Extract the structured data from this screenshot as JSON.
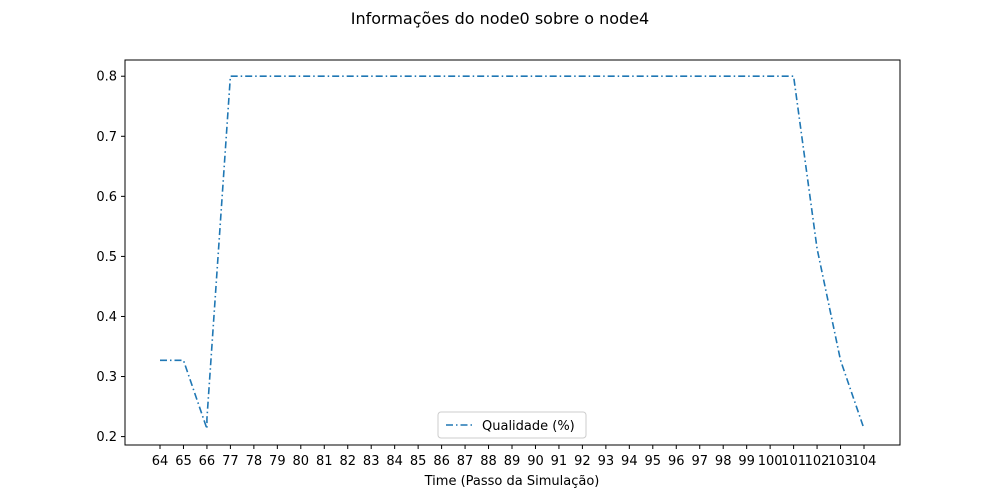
{
  "chart_data": {
    "type": "line",
    "title": "Informações do node0 sobre o node4",
    "xlabel": "Time (Passo da Simulação)",
    "ylabel": "",
    "categories": [
      "64",
      "65",
      "66",
      "77",
      "78",
      "79",
      "80",
      "81",
      "82",
      "83",
      "84",
      "85",
      "86",
      "87",
      "88",
      "89",
      "90",
      "91",
      "92",
      "93",
      "94",
      "95",
      "96",
      "97",
      "98",
      "99",
      "100",
      "101",
      "102",
      "103",
      "104"
    ],
    "series": [
      {
        "name": "Qualidade (%)",
        "color": "#1f77b4",
        "line_style": "dash-dot",
        "points": [
          {
            "x": "64",
            "y": 0.327
          },
          {
            "x": "65",
            "y": 0.327
          },
          {
            "x": "66",
            "y": 0.213
          },
          {
            "x": "66",
            "y": 0.23
          },
          {
            "x": "77",
            "y": 0.8
          },
          {
            "x": "78",
            "y": 0.8
          },
          {
            "x": "79",
            "y": 0.8
          },
          {
            "x": "80",
            "y": 0.8
          },
          {
            "x": "81",
            "y": 0.8
          },
          {
            "x": "82",
            "y": 0.8
          },
          {
            "x": "83",
            "y": 0.8
          },
          {
            "x": "84",
            "y": 0.8
          },
          {
            "x": "85",
            "y": 0.8
          },
          {
            "x": "86",
            "y": 0.8
          },
          {
            "x": "87",
            "y": 0.8
          },
          {
            "x": "88",
            "y": 0.8
          },
          {
            "x": "89",
            "y": 0.8
          },
          {
            "x": "90",
            "y": 0.8
          },
          {
            "x": "91",
            "y": 0.8
          },
          {
            "x": "92",
            "y": 0.8
          },
          {
            "x": "93",
            "y": 0.8
          },
          {
            "x": "94",
            "y": 0.8
          },
          {
            "x": "95",
            "y": 0.8
          },
          {
            "x": "96",
            "y": 0.8
          },
          {
            "x": "97",
            "y": 0.8
          },
          {
            "x": "98",
            "y": 0.8
          },
          {
            "x": "99",
            "y": 0.8
          },
          {
            "x": "100",
            "y": 0.8
          },
          {
            "x": "101",
            "y": 0.8
          },
          {
            "x": "102",
            "y": 0.513
          },
          {
            "x": "103",
            "y": 0.327
          },
          {
            "x": "104",
            "y": 0.213
          }
        ]
      }
    ],
    "y_ticks": [
      0.2,
      0.3,
      0.4,
      0.5,
      0.6,
      0.7,
      0.8
    ],
    "ylim": [
      0.186,
      0.827
    ],
    "grid": false,
    "legend_position": "bottom-center"
  }
}
